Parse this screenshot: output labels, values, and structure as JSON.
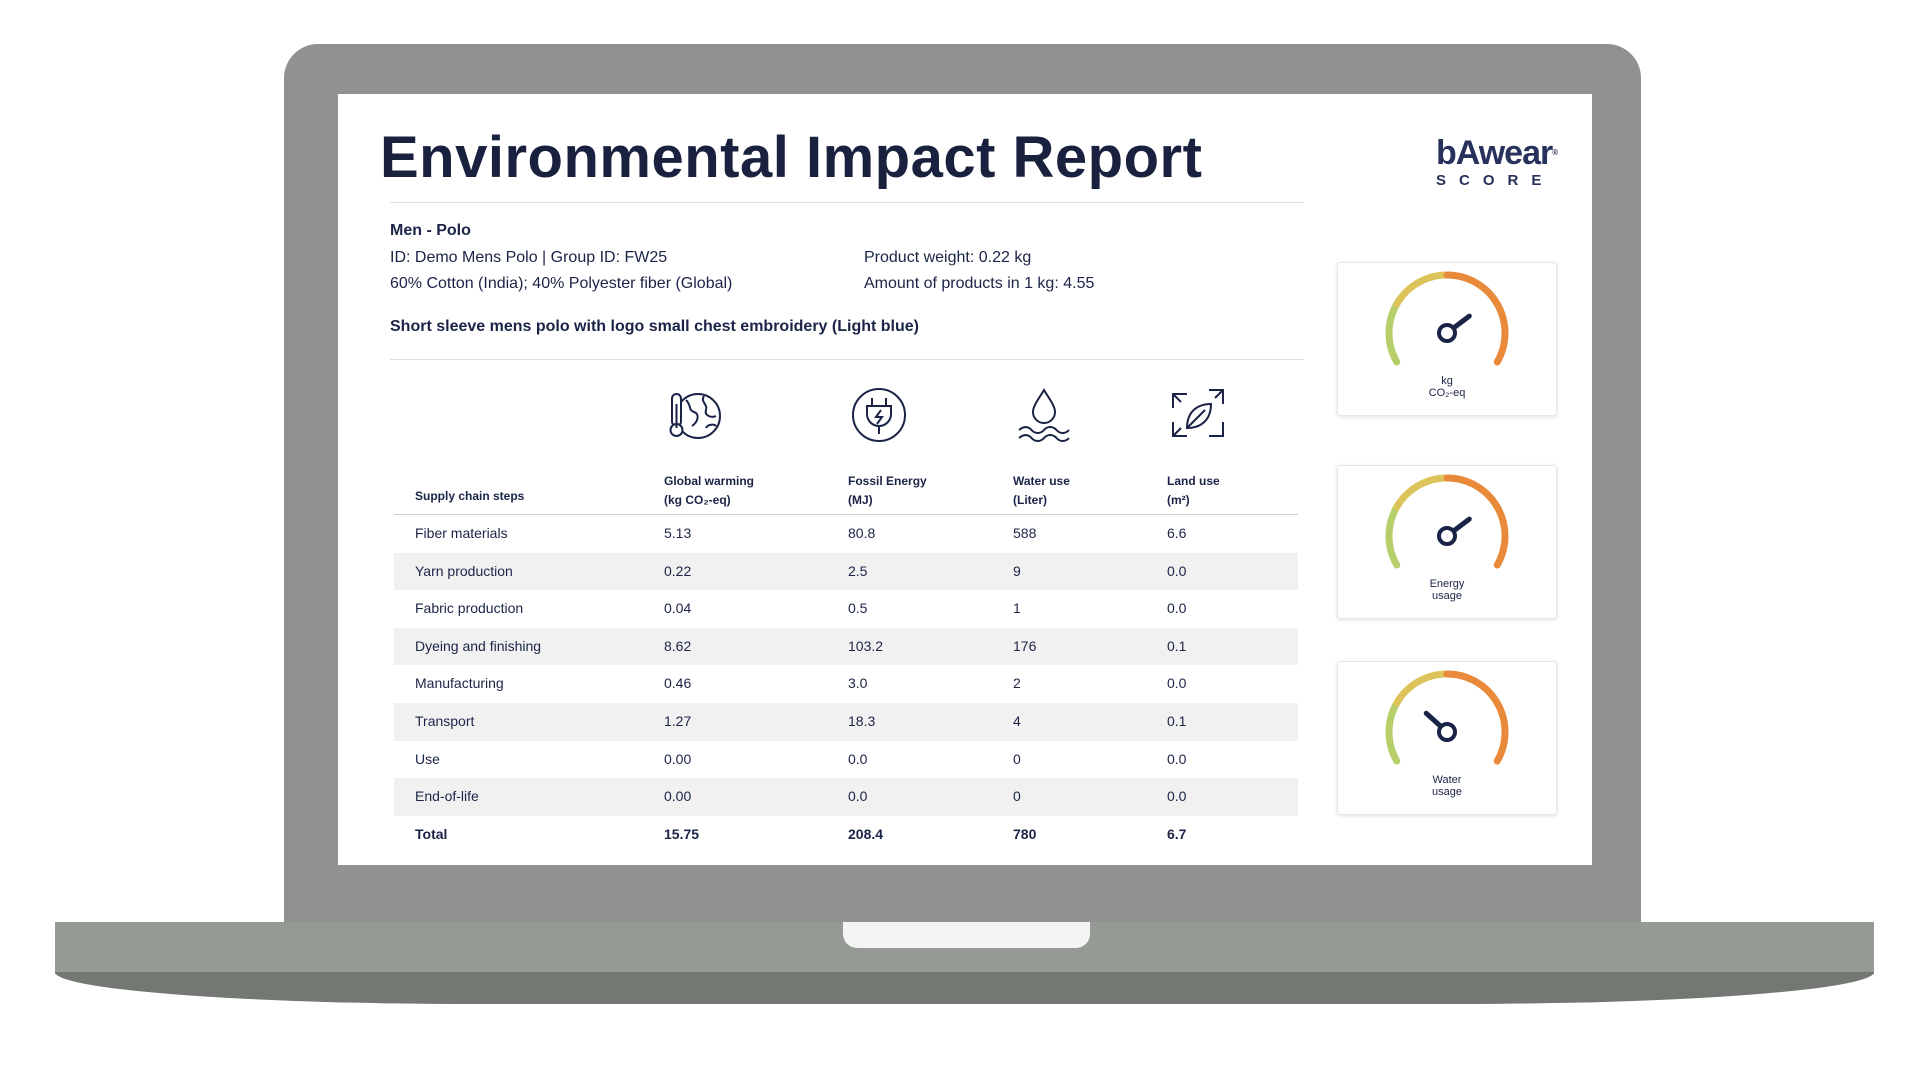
{
  "report": {
    "title": "Environmental Impact Report",
    "logo_main": "bAwear",
    "logo_reg": "®",
    "logo_sub": "SCORE"
  },
  "product": {
    "name": "Men - Polo",
    "id_line": "ID: Demo Mens Polo | Group ID: FW25",
    "composition": "60% Cotton (India); 40% Polyester fiber (Global)",
    "weight": "Product weight: 0.22 kg",
    "per_kg": "Amount of products in 1 kg: 4.55",
    "description": "Short sleeve mens polo with logo small chest embroidery (Light blue)"
  },
  "table": {
    "columns": [
      {
        "icon": "thermometer-globe-icon",
        "line1": "Global warming",
        "line2": "(kg CO₂-eq)"
      },
      {
        "icon": "plug-icon",
        "line1": "Fossil Energy",
        "line2": "(MJ)"
      },
      {
        "icon": "water-drop-icon",
        "line1": "Water use",
        "line2": "(Liter)"
      },
      {
        "icon": "leaf-recycle-icon",
        "line1": "Land use",
        "line2": "(m²)"
      }
    ],
    "steps_header": "Supply chain steps",
    "rows": [
      {
        "step": "Fiber materials",
        "gw": "5.13",
        "fe": "80.8",
        "wu": "588",
        "lu": "6.6"
      },
      {
        "step": "Yarn production",
        "gw": "0.22",
        "fe": "2.5",
        "wu": "9",
        "lu": "0.0"
      },
      {
        "step": "Fabric production",
        "gw": "0.04",
        "fe": "0.5",
        "wu": "1",
        "lu": "0.0"
      },
      {
        "step": "Dyeing and finishing",
        "gw": "8.62",
        "fe": "103.2",
        "wu": "176",
        "lu": "0.1"
      },
      {
        "step": "Manufacturing",
        "gw": "0.46",
        "fe": "3.0",
        "wu": "2",
        "lu": "0.0"
      },
      {
        "step": "Transport",
        "gw": "1.27",
        "fe": "18.3",
        "wu": "4",
        "lu": "0.1"
      },
      {
        "step": "Use",
        "gw": "0.00",
        "fe": "0.0",
        "wu": "0",
        "lu": "0.0"
      },
      {
        "step": "End-of-life",
        "gw": "0.00",
        "fe": "0.0",
        "wu": "0",
        "lu": "0.0"
      }
    ],
    "total": {
      "step": "Total",
      "gw": "15.75",
      "fe": "208.4",
      "wu": "780",
      "lu": "6.7"
    }
  },
  "gauges": [
    {
      "label_line1": "kg",
      "label_line2": "CO₂-eq",
      "level": 0.72
    },
    {
      "label_line1": "Energy",
      "label_line2": "usage",
      "level": 0.72
    },
    {
      "label_line1": "Water",
      "label_line2": "usage",
      "level": 0.3
    }
  ],
  "colors": {
    "navy": "#1b2447",
    "gauge_green": "#b6cf6a",
    "gauge_yellow": "#dcc45a",
    "gauge_orange": "#e98a3b"
  }
}
